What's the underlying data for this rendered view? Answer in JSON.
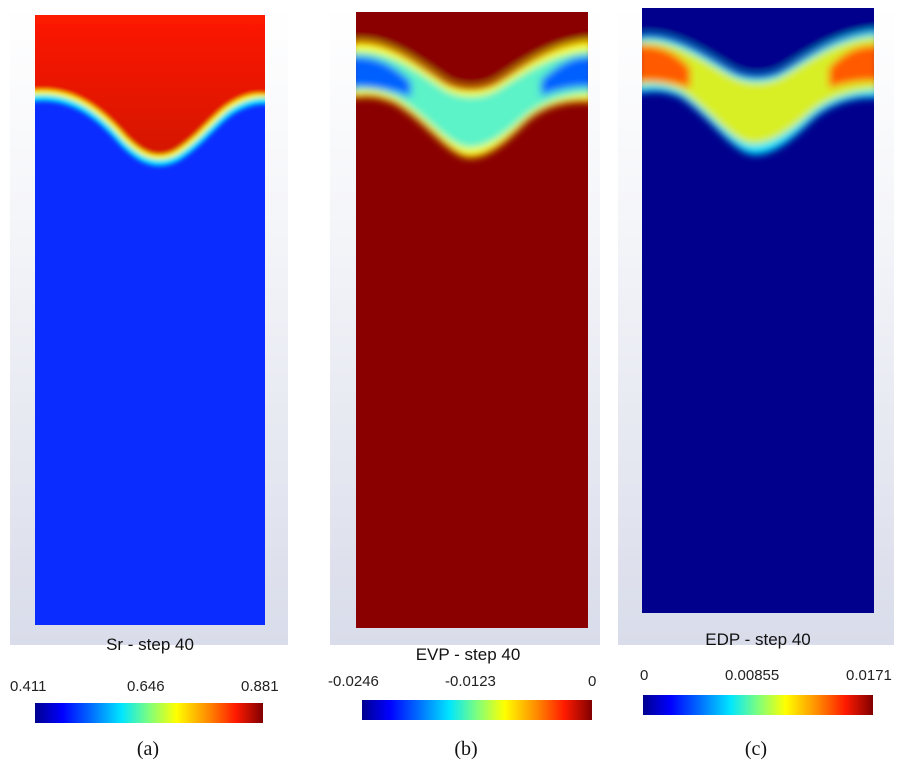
{
  "panels": [
    {
      "step_label": "Sr - step 40",
      "colorbar": {
        "min": "0.411",
        "mid": "0.646",
        "max": "0.881"
      },
      "caption": "(a)"
    },
    {
      "step_label": "EVP - step 40",
      "colorbar": {
        "min": "-0.0246",
        "mid": "-0.0123",
        "max": "0"
      },
      "caption": "(b)"
    },
    {
      "step_label": "EDP - step 40",
      "colorbar": {
        "min": "0",
        "mid": "0.00855",
        "max": "0.0171"
      },
      "caption": "(c)"
    }
  ],
  "colors": {
    "dark_blue": "#00008c",
    "blue": "#0a2cff",
    "red": "#ff1a00",
    "dark_red": "#8a0000"
  }
}
